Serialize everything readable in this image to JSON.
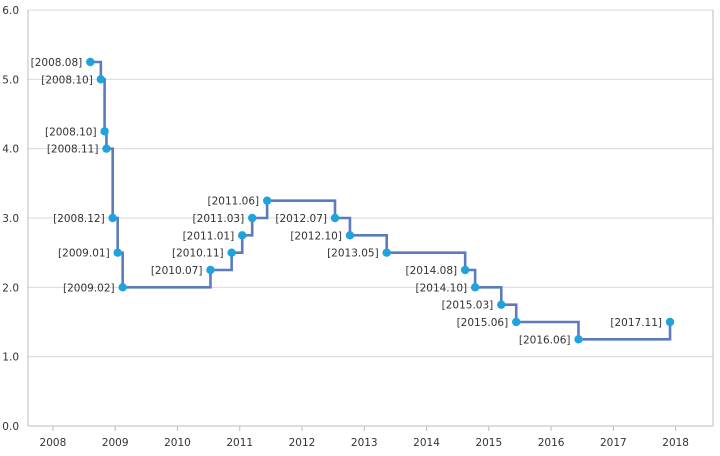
{
  "chart_data": {
    "type": "line",
    "step": "after",
    "title": "",
    "xlabel": "",
    "ylabel": "",
    "xlim": [
      2007.6,
      2018.6
    ],
    "ylim": [
      0,
      6
    ],
    "grid": true,
    "x_ticks": [
      2008,
      2009,
      2010,
      2011,
      2012,
      2013,
      2014,
      2015,
      2016,
      2017,
      2018
    ],
    "x_tick_labels": [
      "2008",
      "2009",
      "2010",
      "2011",
      "2012",
      "2013",
      "2014",
      "2015",
      "2016",
      "2017",
      "2018"
    ],
    "y_ticks": [
      0,
      1,
      2,
      3,
      4,
      5,
      6
    ],
    "y_tick_labels": [
      "0.0",
      "1.0",
      "2.0",
      "3.0",
      "4.0",
      "5.0",
      "6.0"
    ],
    "line_color": "#5b7bbd",
    "marker_color": "#1ea3dd",
    "points": [
      {
        "label": "[2008.08]",
        "x": 2008.6,
        "y": 5.25
      },
      {
        "label": "[2008.10]",
        "x": 2008.77,
        "y": 5.0
      },
      {
        "label": "[2008.10]",
        "x": 2008.83,
        "y": 4.25
      },
      {
        "label": "[2008.11]",
        "x": 2008.86,
        "y": 4.0
      },
      {
        "label": "[2008.12]",
        "x": 2008.96,
        "y": 3.0
      },
      {
        "label": "[2009.01]",
        "x": 2009.04,
        "y": 2.5
      },
      {
        "label": "[2009.02]",
        "x": 2009.12,
        "y": 2.0
      },
      {
        "label": "[2010.07]",
        "x": 2010.53,
        "y": 2.25
      },
      {
        "label": "[2010.11]",
        "x": 2010.87,
        "y": 2.5
      },
      {
        "label": "[2011.01]",
        "x": 2011.04,
        "y": 2.75
      },
      {
        "label": "[2011.03]",
        "x": 2011.2,
        "y": 3.0
      },
      {
        "label": "[2011.06]",
        "x": 2011.44,
        "y": 3.25
      },
      {
        "label": "[2012.07]",
        "x": 2012.53,
        "y": 3.0
      },
      {
        "label": "[2012.10]",
        "x": 2012.77,
        "y": 2.75
      },
      {
        "label": "[2013.05]",
        "x": 2013.36,
        "y": 2.5
      },
      {
        "label": "[2014.08]",
        "x": 2014.62,
        "y": 2.25
      },
      {
        "label": "[2014.10]",
        "x": 2014.78,
        "y": 2.0
      },
      {
        "label": "[2015.03]",
        "x": 2015.2,
        "y": 1.75
      },
      {
        "label": "[2015.06]",
        "x": 2015.44,
        "y": 1.5
      },
      {
        "label": "[2016.06]",
        "x": 2016.44,
        "y": 1.25
      },
      {
        "label": "[2017.11]",
        "x": 2017.91,
        "y": 1.5
      }
    ]
  }
}
